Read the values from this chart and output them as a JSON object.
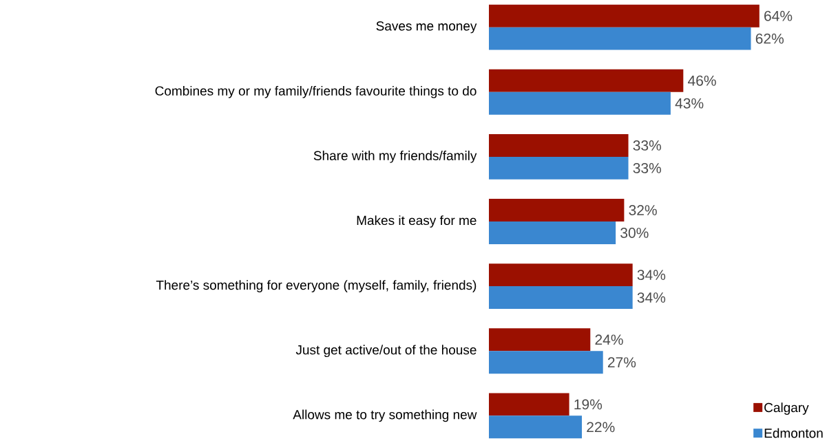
{
  "chart_data": {
    "type": "bar",
    "orientation": "horizontal",
    "categories": [
      "Saves me money",
      "Combines my or my family/friends favourite things to do",
      "Share with my friends/family",
      "Makes it easy for me",
      "There’s something for everyone (myself, family, friends)",
      "Just get active/out of the house",
      "Allows me to try something new"
    ],
    "series": [
      {
        "name": "Calgary",
        "color": "#9b1000",
        "values": [
          64,
          46,
          33,
          32,
          34,
          24,
          19
        ],
        "value_labels": [
          "64%",
          "46%",
          "33%",
          "32%",
          "34%",
          "24%",
          "19%"
        ]
      },
      {
        "name": "Edmonton",
        "color": "#3a87d0",
        "values": [
          62,
          43,
          33,
          30,
          34,
          27,
          22
        ],
        "value_labels": [
          "62%",
          "43%",
          "33%",
          "30%",
          "34%",
          "27%",
          "22%"
        ]
      }
    ],
    "tick_labels": "y",
    "legend": "bottom right"
  }
}
